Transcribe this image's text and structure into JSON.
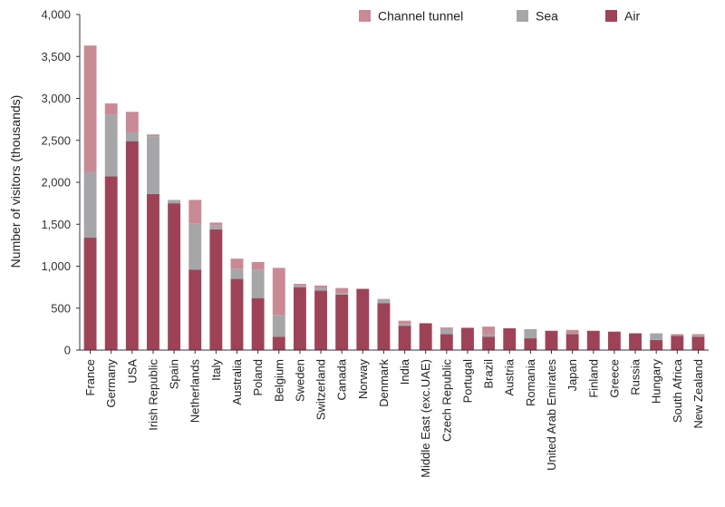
{
  "chart_data": {
    "type": "bar",
    "stacked": true,
    "title": "",
    "xlabel": "",
    "ylabel": "Number of visitors (thousands)",
    "ylim": [
      0,
      4000
    ],
    "yticks": [
      "0",
      "500",
      "1,000",
      "1,500",
      "2,000",
      "2,500",
      "3,000",
      "3,500",
      "4,000"
    ],
    "grid": false,
    "legend_position": "top-right",
    "categories": [
      "France",
      "Germany",
      "USA",
      "Irish Republic",
      "Spain",
      "Netherlands",
      "Italy",
      "Australia",
      "Poland",
      "Belgium",
      "Sweden",
      "Switzerland",
      "Canada",
      "Norway",
      "Denmark",
      "India",
      "Middle East (exc.UAE)",
      "Czech Republic",
      "Portugal",
      "Brazil",
      "Austria",
      "Romania",
      "United Arab Emirates",
      "Japan",
      "Finland",
      "Greece",
      "Russia",
      "Hungary",
      "South Africa",
      "New Zealand"
    ],
    "series": [
      {
        "name": "Air",
        "color": "#9e4357",
        "values": [
          1340,
          2070,
          2490,
          1860,
          1750,
          960,
          1440,
          850,
          620,
          160,
          750,
          710,
          660,
          730,
          560,
          290,
          320,
          190,
          260,
          160,
          260,
          140,
          230,
          190,
          230,
          220,
          200,
          120,
          170,
          160
        ]
      },
      {
        "name": "Sea",
        "color": "#a6a6a8",
        "values": [
          780,
          740,
          110,
          690,
          40,
          550,
          50,
          120,
          340,
          260,
          20,
          30,
          20,
          0,
          50,
          20,
          0,
          60,
          0,
          30,
          0,
          110,
          0,
          10,
          0,
          0,
          0,
          80,
          0,
          10
        ]
      },
      {
        "name": "Channel tunnel",
        "color": "#c98a95",
        "values": [
          1510,
          130,
          240,
          20,
          0,
          280,
          30,
          120,
          90,
          560,
          20,
          30,
          60,
          0,
          0,
          40,
          0,
          20,
          10,
          90,
          0,
          0,
          0,
          40,
          0,
          0,
          0,
          0,
          20,
          20
        ]
      }
    ]
  }
}
